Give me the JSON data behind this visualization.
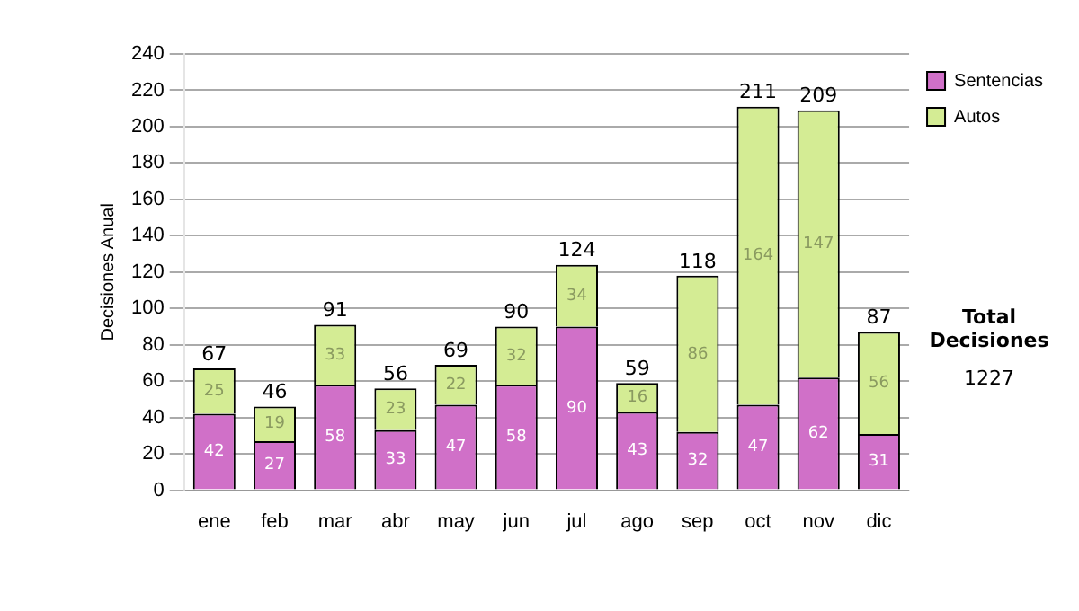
{
  "chart_data": {
    "type": "bar",
    "ylabel": "Decisiones Anual",
    "categories": [
      "ene",
      "feb",
      "mar",
      "abr",
      "may",
      "jun",
      "jul",
      "ago",
      "sep",
      "oct",
      "nov",
      "dic"
    ],
    "series": [
      {
        "name": "Sentencias",
        "color": "#d070c8",
        "values": [
          42,
          27,
          58,
          33,
          47,
          58,
          90,
          43,
          32,
          47,
          62,
          31
        ]
      },
      {
        "name": "Autos",
        "color": "#d4ec94",
        "values": [
          25,
          19,
          33,
          23,
          22,
          32,
          34,
          16,
          86,
          164,
          147,
          56
        ]
      }
    ],
    "stacked": true,
    "ylim": [
      0,
      240
    ],
    "yticks": [
      0,
      20,
      40,
      60,
      80,
      100,
      120,
      140,
      160,
      180,
      200,
      220,
      240
    ],
    "grid": "y",
    "legend": "right",
    "data_labels": true,
    "totals": [
      "67",
      "46",
      "91",
      "56",
      "69",
      "90",
      "124",
      "59",
      "118",
      "211",
      "209",
      "87"
    ],
    "annotations": [
      "Total Decisiones",
      "1227"
    ]
  }
}
